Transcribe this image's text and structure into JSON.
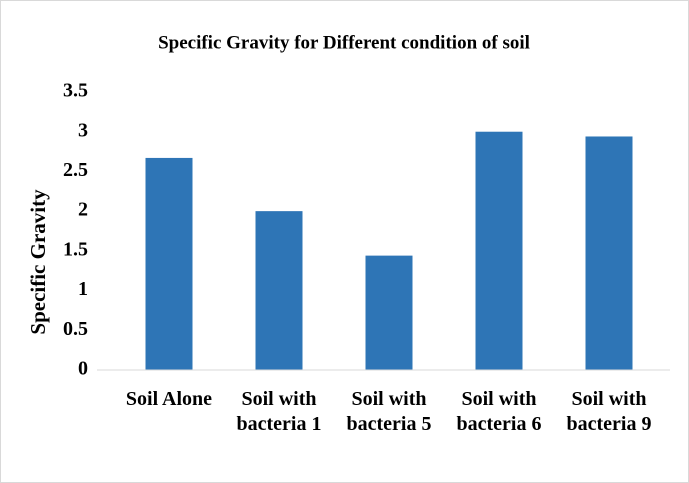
{
  "chart_data": {
    "type": "bar",
    "title": "Specific Gravity for Different condition of soil",
    "y_label": "Specific Gravity",
    "categories": [
      "Soil Alone",
      "Soil with bacteria 1",
      "Soil with bacteria 5",
      "Soil with bacteria 6",
      "Soil with bacteria 9"
    ],
    "values": [
      2.67,
      2.0,
      1.44,
      3.0,
      2.94
    ],
    "color": "#2e75b6",
    "ylim": [
      0,
      3.5
    ],
    "yticks": [
      0,
      0.5,
      1,
      1.5,
      2,
      2.5,
      3,
      3.5
    ],
    "grid": false
  }
}
